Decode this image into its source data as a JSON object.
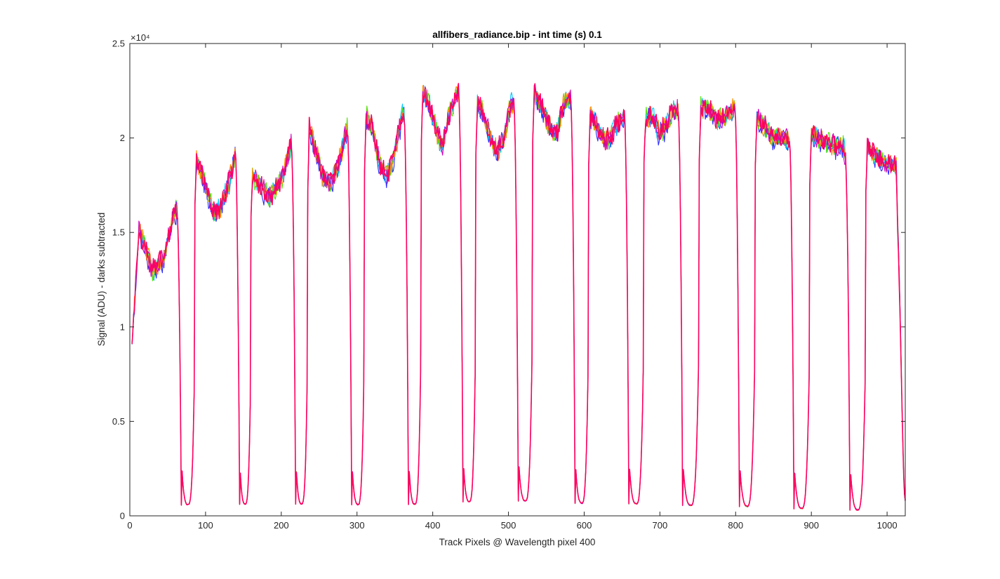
{
  "chart_data": {
    "type": "line",
    "title": "allfibers_radiance.bip - int time (s) 0.1",
    "xlabel": "Track Pixels @ Wavelength pixel 400",
    "ylabel": "Signal (ADU) - darks subtracted",
    "exponent_label": "×10⁴",
    "xlim": [
      0,
      1024
    ],
    "ylim": [
      0,
      25000
    ],
    "x_ticks": [
      0,
      100,
      200,
      300,
      400,
      500,
      600,
      700,
      800,
      900,
      1000
    ],
    "x_tick_labels": [
      "0",
      "100",
      "200",
      "300",
      "400",
      "500",
      "600",
      "700",
      "800",
      "900",
      "1000"
    ],
    "y_ticks": [
      0,
      5000,
      10000,
      15000,
      20000,
      25000
    ],
    "y_tick_labels": [
      "0",
      "0.5",
      "1",
      "1.5",
      "2",
      "2.5"
    ],
    "grid": false,
    "box": true,
    "fiber_bands": [
      {
        "start": 3,
        "end": 68,
        "low": 590,
        "knots": [
          [
            3,
            9100
          ],
          [
            12,
            15200
          ],
          [
            30,
            13000
          ],
          [
            45,
            13600
          ],
          [
            58,
            16000
          ],
          [
            62,
            16200
          ]
        ]
      },
      {
        "start": 86,
        "end": 145,
        "low": 620,
        "knots": [
          [
            86,
            16500
          ],
          [
            88,
            18900
          ],
          [
            98,
            17800
          ],
          [
            110,
            16000
          ],
          [
            120,
            16300
          ],
          [
            132,
            17800
          ],
          [
            140,
            19400
          ]
        ]
      },
      {
        "start": 160,
        "end": 219,
        "low": 640,
        "knots": [
          [
            160,
            15800
          ],
          [
            162,
            18000
          ],
          [
            175,
            17300
          ],
          [
            185,
            16900
          ],
          [
            200,
            17700
          ],
          [
            208,
            19000
          ],
          [
            215,
            19900
          ]
        ]
      },
      {
        "start": 235,
        "end": 293,
        "low": 600,
        "knots": [
          [
            235,
            17200
          ],
          [
            237,
            20600
          ],
          [
            246,
            19300
          ],
          [
            255,
            17900
          ],
          [
            265,
            17600
          ],
          [
            276,
            18700
          ],
          [
            285,
            20200
          ],
          [
            289,
            20800
          ]
        ]
      },
      {
        "start": 310,
        "end": 368,
        "low": 620,
        "knots": [
          [
            310,
            18300
          ],
          [
            312,
            21200
          ],
          [
            320,
            20600
          ],
          [
            330,
            18600
          ],
          [
            340,
            18000
          ],
          [
            350,
            19300
          ],
          [
            360,
            21200
          ],
          [
            364,
            21200
          ]
        ]
      },
      {
        "start": 385,
        "end": 440,
        "low": 760,
        "knots": [
          [
            385,
            19900
          ],
          [
            387,
            22500
          ],
          [
            396,
            21700
          ],
          [
            406,
            20200
          ],
          [
            413,
            19600
          ],
          [
            422,
            21300
          ],
          [
            432,
            22400
          ],
          [
            436,
            22400
          ]
        ]
      },
      {
        "start": 457,
        "end": 513,
        "low": 790,
        "knots": [
          [
            457,
            19100
          ],
          [
            459,
            21800
          ],
          [
            466,
            21400
          ],
          [
            476,
            20100
          ],
          [
            485,
            19300
          ],
          [
            494,
            20000
          ],
          [
            503,
            21800
          ],
          [
            509,
            21800
          ]
        ]
      },
      {
        "start": 532,
        "end": 588,
        "low": 670,
        "knots": [
          [
            532,
            19800
          ],
          [
            534,
            22400
          ],
          [
            545,
            21600
          ],
          [
            555,
            20500
          ],
          [
            565,
            20400
          ],
          [
            575,
            22100
          ],
          [
            584,
            22100
          ]
        ]
      },
      {
        "start": 606,
        "end": 659,
        "low": 640,
        "knots": [
          [
            606,
            18600
          ],
          [
            608,
            21300
          ],
          [
            616,
            20700
          ],
          [
            626,
            20000
          ],
          [
            634,
            20000
          ],
          [
            645,
            20900
          ],
          [
            655,
            21300
          ]
        ]
      },
      {
        "start": 679,
        "end": 730,
        "low": 560,
        "knots": [
          [
            679,
            18700
          ],
          [
            681,
            21100
          ],
          [
            690,
            21200
          ],
          [
            698,
            20400
          ],
          [
            706,
            20500
          ],
          [
            716,
            21400
          ],
          [
            726,
            21500
          ]
        ]
      },
      {
        "start": 752,
        "end": 805,
        "low": 510,
        "knots": [
          [
            752,
            18900
          ],
          [
            754,
            21600
          ],
          [
            765,
            21500
          ],
          [
            775,
            21000
          ],
          [
            785,
            21100
          ],
          [
            795,
            21500
          ],
          [
            801,
            21500
          ]
        ]
      },
      {
        "start": 826,
        "end": 877,
        "low": 390,
        "knots": [
          [
            826,
            18500
          ],
          [
            828,
            21100
          ],
          [
            840,
            20500
          ],
          [
            850,
            20000
          ],
          [
            860,
            20000
          ],
          [
            868,
            20000
          ],
          [
            873,
            19800
          ]
        ]
      },
      {
        "start": 898,
        "end": 951,
        "low": 320,
        "knots": [
          [
            898,
            17600
          ],
          [
            900,
            20300
          ],
          [
            912,
            19900
          ],
          [
            922,
            19800
          ],
          [
            932,
            19600
          ],
          [
            942,
            19700
          ],
          [
            947,
            18400
          ]
        ]
      },
      {
        "start": 972,
        "end": 1024,
        "low": 220,
        "knots": [
          [
            972,
            17200
          ],
          [
            974,
            19600
          ],
          [
            985,
            19100
          ],
          [
            995,
            18700
          ],
          [
            1005,
            18700
          ],
          [
            1012,
            18500
          ],
          [
            1024,
            800
          ]
        ]
      }
    ],
    "series": [
      {
        "color": "#2b2bff"
      },
      {
        "color": "#00c8ff"
      },
      {
        "color": "#50e000"
      },
      {
        "color": "#ff8c00"
      },
      {
        "color": "#d000c0"
      },
      {
        "color": "#ff0060"
      }
    ]
  }
}
